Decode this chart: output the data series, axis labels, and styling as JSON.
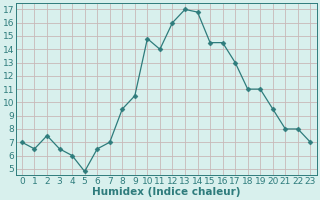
{
  "x": [
    0,
    1,
    2,
    3,
    4,
    5,
    6,
    7,
    8,
    9,
    10,
    11,
    12,
    13,
    14,
    15,
    16,
    17,
    18,
    19,
    20,
    21,
    22,
    23
  ],
  "y": [
    7,
    6.5,
    7.5,
    6.5,
    6,
    4.8,
    6.5,
    7,
    9.5,
    10.5,
    14.8,
    14,
    16,
    17,
    16.8,
    14.5,
    14.5,
    13,
    11,
    11,
    9.5,
    8,
    8,
    7
  ],
  "line_color": "#2e7c7c",
  "marker": "D",
  "marker_size": 2.5,
  "bg_color": "#d8f0ed",
  "grid_color": "#c8b8b8",
  "xlabel": "Humidex (Indice chaleur)",
  "ylim": [
    4.5,
    17.5
  ],
  "xlim": [
    -0.5,
    23.5
  ],
  "yticks": [
    5,
    6,
    7,
    8,
    9,
    10,
    11,
    12,
    13,
    14,
    15,
    16,
    17
  ],
  "xticks": [
    0,
    1,
    2,
    3,
    4,
    5,
    6,
    7,
    8,
    9,
    10,
    11,
    12,
    13,
    14,
    15,
    16,
    17,
    18,
    19,
    20,
    21,
    22,
    23
  ],
  "tick_color": "#2e7c7c",
  "label_color": "#2e7c7c",
  "font_size": 6.5,
  "xlabel_fontsize": 7.5
}
